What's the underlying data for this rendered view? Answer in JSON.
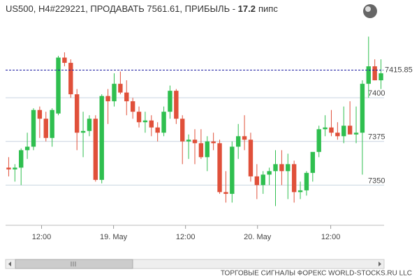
{
  "chart_data": {
    "type": "candlestick",
    "title": "US500, H4#229221, ПРОДАВАТЬ 7561.61, ПРИБЫЛЬ - ",
    "profit": "17.2",
    "profit_unit": "пипс",
    "footer": "ТОРГОВЫЕ СИГНАЛЫ ФОРЕКС WORLD-STOCKS.RU LLC",
    "current_price": 7415.85,
    "current_price_color": "#1a1aa0",
    "up_color": "#2fbf4f",
    "down_color": "#e0503a",
    "xlim": [
      -0.5,
      60.5
    ],
    "xticks": [
      {
        "value": 5.3,
        "label": "12:00"
      },
      {
        "value": 16.9,
        "label": "19. May"
      },
      {
        "value": 28.5,
        "label": "12:00"
      },
      {
        "value": 40.1,
        "label": "20. May"
      },
      {
        "value": 51.9,
        "label": "12:00"
      }
    ],
    "ylim": [
      7327,
      7436
    ],
    "yticks": [
      7350,
      7375,
      7400
    ],
    "grid": true,
    "open": [
      7360,
      7359,
      7360,
      7370,
      7372,
      7393,
      7388,
      7377,
      7391,
      7423,
      7420,
      7402,
      7380,
      7381,
      7388,
      7353,
      7401,
      7398,
      7408,
      7403,
      7398,
      7392,
      7386,
      7387,
      7383,
      7380,
      7392,
      7404,
      7388,
      7375,
      7376,
      7374,
      7366,
      7375,
      7374,
      7346,
      7345,
      7372,
      7378,
      7376,
      7355,
      7350,
      7356,
      7358,
      7362,
      7358,
      7362,
      7346,
      7347,
      7357,
      7369,
      7382,
      7383,
      7380,
      7378,
      7384,
      7379,
      7380,
      7408,
      7418,
      7410
    ],
    "high": [
      7366,
      7362,
      7371,
      7380,
      7394,
      7395,
      7392,
      7394,
      7424,
      7426,
      7422,
      7405,
      7392,
      7390,
      7390,
      7402,
      7405,
      7414,
      7415,
      7410,
      7400,
      7395,
      7392,
      7390,
      7386,
      7395,
      7407,
      7405,
      7390,
      7379,
      7382,
      7382,
      7378,
      7380,
      7376,
      7358,
      7375,
      7385,
      7390,
      7380,
      7362,
      7358,
      7360,
      7370,
      7370,
      7368,
      7364,
      7352,
      7358,
      7368,
      7384,
      7390,
      7393,
      7386,
      7395,
      7398,
      7395,
      7410,
      7435,
      7422,
      7422
    ],
    "low": [
      7355,
      7352,
      7350,
      7365,
      7370,
      7377,
      7375,
      7372,
      7390,
      7418,
      7400,
      7370,
      7366,
      7378,
      7352,
      7351,
      7385,
      7395,
      7402,
      7390,
      7388,
      7383,
      7380,
      7378,
      7375,
      7378,
      7388,
      7385,
      7362,
      7365,
      7362,
      7365,
      7358,
      7370,
      7345,
      7340,
      7340,
      7365,
      7370,
      7352,
      7342,
      7345,
      7350,
      7338,
      7350,
      7342,
      7340,
      7342,
      7344,
      7352,
      7366,
      7378,
      7378,
      7376,
      7374,
      7380,
      7374,
      7356,
      7400,
      7410,
      7405
    ],
    "close": [
      7359,
      7360,
      7370,
      7372,
      7393,
      7388,
      7377,
      7393,
      7423,
      7420,
      7402,
      7380,
      7381,
      7388,
      7353,
      7401,
      7398,
      7408,
      7403,
      7398,
      7392,
      7386,
      7387,
      7383,
      7380,
      7392,
      7404,
      7388,
      7375,
      7376,
      7374,
      7366,
      7375,
      7374,
      7346,
      7345,
      7372,
      7378,
      7376,
      7355,
      7350,
      7356,
      7358,
      7362,
      7358,
      7362,
      7346,
      7347,
      7357,
      7369,
      7382,
      7383,
      7380,
      7378,
      7384,
      7379,
      7380,
      7408,
      7418,
      7410,
      7414
    ]
  }
}
